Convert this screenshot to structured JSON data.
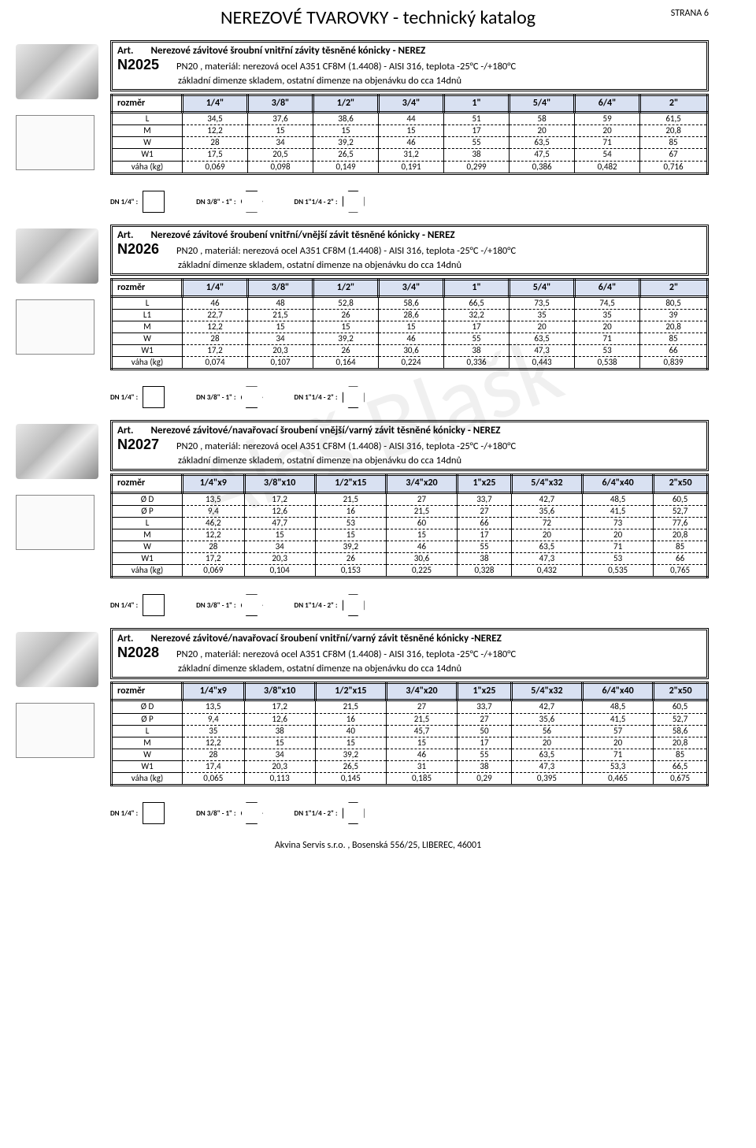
{
  "header": {
    "title": "NEREZOVÉ TVAROVKY - technický katalog",
    "page": "STRANA 6"
  },
  "footer": "Akvina Servis s.r.o. , Bosenská 556/25, LIBEREC, 46001",
  "watermark": "Aleš Blašk",
  "diagram_labels": {
    "a": "DN 1/4\" :",
    "b": "DN 3/8\" - 1\" :",
    "c": "DN 1\"1/4 - 2\" :"
  },
  "sizes_standard": [
    "1/4\"",
    "3/8\"",
    "1/2\"",
    "3/4\"",
    "1\"",
    "5/4\"",
    "6/4\"",
    "2\""
  ],
  "sizes_weld": [
    "1/4\"x9",
    "3/8\"x10",
    "1/2\"x15",
    "3/4\"x20",
    "1\"x25",
    "5/4\"x32",
    "6/4\"x40",
    "2\"x50"
  ],
  "rozmer": "rozměr",
  "products": [
    {
      "code": "N2025",
      "art": "Art.",
      "title": "Nerezové závitové šroubní vnitřní závity těsněné kónicky - NEREZ",
      "sub": "PN20 , materiál: nerezová ocel A351 CF8M (1.4408) - AISI 316, teplota -25°C -/+180°C",
      "note": "základní dimenze skladem, ostatní dimenze na objenávku do cca 14dnů",
      "size_key": "standard",
      "rows": [
        {
          "label": "L",
          "v": [
            "34,5",
            "37,6",
            "38,6",
            "44",
            "51",
            "58",
            "59",
            "61,5"
          ]
        },
        {
          "label": "M",
          "v": [
            "12,2",
            "15",
            "15",
            "15",
            "17",
            "20",
            "20",
            "20,8"
          ]
        },
        {
          "label": "W",
          "v": [
            "28",
            "34",
            "39,2",
            "46",
            "55",
            "63,5",
            "71",
            "85"
          ]
        },
        {
          "label": "W1",
          "v": [
            "17,5",
            "20,5",
            "26,5",
            "31,2",
            "38",
            "47,5",
            "54",
            "67"
          ]
        },
        {
          "label": "váha (kg)",
          "v": [
            "0,069",
            "0,098",
            "0,149",
            "0,191",
            "0,299",
            "0,386",
            "0,482",
            "0,716"
          ]
        }
      ]
    },
    {
      "code": "N2026",
      "art": "Art.",
      "title": "Nerezové závitové šroubení vnitřní/vnější závit těsněné kónicky - NEREZ",
      "sub": "PN20 , materiál: nerezová ocel A351 CF8M (1.4408) - AISI 316, teplota -25°C -/+180°C",
      "note": "základní dimenze skladem, ostatní dimenze na objenávku do cca 14dnů",
      "size_key": "standard",
      "rows": [
        {
          "label": "L",
          "v": [
            "46",
            "48",
            "52,8",
            "58,6",
            "66,5",
            "73,5",
            "74,5",
            "80,5"
          ]
        },
        {
          "label": "L1",
          "v": [
            "22,7",
            "21,5",
            "26",
            "28,6",
            "32,2",
            "35",
            "35",
            "39"
          ]
        },
        {
          "label": "M",
          "v": [
            "12,2",
            "15",
            "15",
            "15",
            "17",
            "20",
            "20",
            "20,8"
          ]
        },
        {
          "label": "W",
          "v": [
            "28",
            "34",
            "39,2",
            "46",
            "55",
            "63,5",
            "71",
            "85"
          ]
        },
        {
          "label": "W1",
          "v": [
            "17,2",
            "20,3",
            "26",
            "30,6",
            "38",
            "47,3",
            "53",
            "66"
          ]
        },
        {
          "label": "váha (kg)",
          "v": [
            "0,074",
            "0,107",
            "0,164",
            "0,224",
            "0,336",
            "0,443",
            "0,538",
            "0,839"
          ]
        }
      ]
    },
    {
      "code": "N2027",
      "art": "Art.",
      "title": "Nerezové závitové/navařovací šroubení vnější/varný závit těsněné kónicky - NEREZ",
      "sub": "PN20 , materiál: nerezová ocel A351 CF8M (1.4408) - AISI 316, teplota -25°C -/+180°C",
      "note": "základní dimenze skladem, ostatní dimenze na objenávku do cca 14dnů",
      "size_key": "weld",
      "rows": [
        {
          "label": "Ø D",
          "v": [
            "13,5",
            "17,2",
            "21,5",
            "27",
            "33,7",
            "42,7",
            "48,5",
            "60,5"
          ]
        },
        {
          "label": "Ø P",
          "v": [
            "9,4",
            "12,6",
            "16",
            "21,5",
            "27",
            "35,6",
            "41,5",
            "52,7"
          ]
        },
        {
          "label": "L",
          "v": [
            "46,2",
            "47,7",
            "53",
            "60",
            "66",
            "72",
            "73",
            "77,6"
          ]
        },
        {
          "label": "M",
          "v": [
            "12,2",
            "15",
            "15",
            "15",
            "17",
            "20",
            "20",
            "20,8"
          ]
        },
        {
          "label": "W",
          "v": [
            "28",
            "34",
            "39,2",
            "46",
            "55",
            "63,5",
            "71",
            "85"
          ]
        },
        {
          "label": "W1",
          "v": [
            "17,2",
            "20,3",
            "26",
            "30,6",
            "38",
            "47,3",
            "53",
            "66"
          ]
        },
        {
          "label": "váha (kg)",
          "v": [
            "0,069",
            "0,104",
            "0,153",
            "0,225",
            "0,328",
            "0,432",
            "0,535",
            "0,765"
          ]
        }
      ]
    },
    {
      "code": "N2028",
      "art": "Art.",
      "title": "Nerezové závitové/navařovací šroubení vnitřní/varný závit těsněné kónicky -NEREZ",
      "sub": "PN20 , materiál: nerezová ocel A351 CF8M (1.4408) - AISI 316, teplota -25°C -/+180°C",
      "note": "základní dimenze skladem, ostatní dimenze na objenávku do cca 14dnů",
      "size_key": "weld",
      "rows": [
        {
          "label": "Ø D",
          "v": [
            "13,5",
            "17,2",
            "21,5",
            "27",
            "33,7",
            "42,7",
            "48,5",
            "60,5"
          ]
        },
        {
          "label": "Ø P",
          "v": [
            "9,4",
            "12,6",
            "16",
            "21,5",
            "27",
            "35,6",
            "41,5",
            "52,7"
          ]
        },
        {
          "label": "L",
          "v": [
            "35",
            "38",
            "40",
            "45,7",
            "50",
            "56",
            "57",
            "58,6"
          ]
        },
        {
          "label": "M",
          "v": [
            "12,2",
            "15",
            "15",
            "15",
            "17",
            "20",
            "20",
            "20,8"
          ]
        },
        {
          "label": "W",
          "v": [
            "28",
            "34",
            "39,2",
            "46",
            "55",
            "63,5",
            "71",
            "85"
          ]
        },
        {
          "label": "W1",
          "v": [
            "17,4",
            "20,3",
            "26,5",
            "31",
            "38",
            "47,3",
            "53,3",
            "66,5"
          ]
        },
        {
          "label": "váha (kg)",
          "v": [
            "0,065",
            "0,113",
            "0,145",
            "0,185",
            "0,29",
            "0,395",
            "0,465",
            "0,675"
          ]
        }
      ]
    }
  ]
}
